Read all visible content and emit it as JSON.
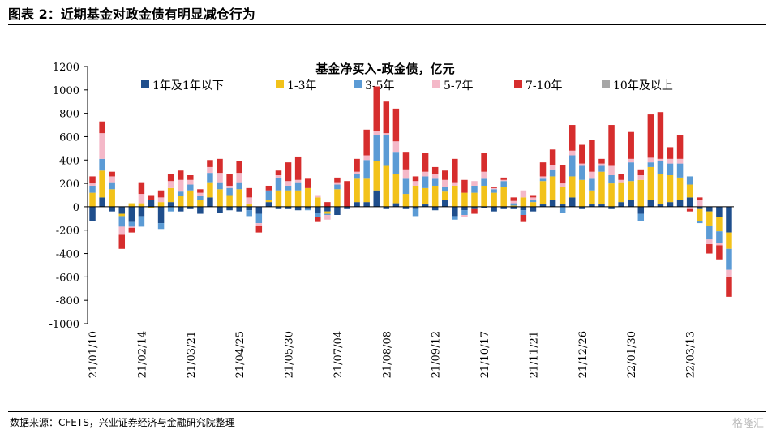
{
  "figure_title": "图表 2：近期基金对政金债有明显减仓行为",
  "source": "数据来源：CFETS，兴业证券经济与金融研究院整理",
  "watermark": "格隆汇",
  "chart_data": {
    "type": "bar",
    "stacked": true,
    "title": "基金净买入-政金债，亿元",
    "xlabel": "",
    "ylabel": "",
    "ylim": [
      -1000,
      1200
    ],
    "yticks": [
      -1000,
      -800,
      -600,
      -400,
      -200,
      0,
      200,
      400,
      600,
      800,
      1000,
      1200
    ],
    "x_tick_labels": [
      "21/01/10",
      "21/02/14",
      "21/03/21",
      "21/04/25",
      "21/05/30",
      "21/07/04",
      "21/08/08",
      "21/09/12",
      "21/10/17",
      "21/11/21",
      "21/12/26",
      "22/01/30",
      "22/03/13"
    ],
    "x_tick_bar_index": [
      0,
      5,
      10,
      15,
      20,
      25,
      30,
      35,
      40,
      45,
      50,
      55,
      61
    ],
    "legend_position": "top",
    "grid": false,
    "series": [
      {
        "name": "1年及1年以下",
        "color": "#1f4e8c",
        "values": [
          -120,
          80,
          -40,
          -60,
          -130,
          -80,
          60,
          -140,
          40,
          -40,
          -20,
          -60,
          80,
          -50,
          -30,
          -40,
          -30,
          -60,
          40,
          -20,
          -20,
          -30,
          -20,
          -50,
          -40,
          -70,
          -20,
          40,
          40,
          140,
          -20,
          30,
          -20,
          -20,
          20,
          -30,
          60,
          -80,
          -30,
          -20,
          -10,
          -40,
          -20,
          -20,
          -30,
          -40,
          20,
          60,
          20,
          80,
          -20,
          20,
          20,
          -20,
          40,
          60,
          -60,
          60,
          20,
          40,
          60,
          80,
          -20,
          -40,
          -90,
          -220
        ]
      },
      {
        "name": "1-3年",
        "color": "#f2c21a",
        "values": [
          120,
          230,
          150,
          -20,
          30,
          30,
          -10,
          40,
          120,
          90,
          140,
          60,
          130,
          150,
          100,
          150,
          20,
          0,
          20,
          140,
          140,
          140,
          160,
          80,
          -20,
          150,
          0,
          200,
          200,
          250,
          350,
          250,
          110,
          180,
          140,
          180,
          70,
          180,
          120,
          120,
          180,
          120,
          170,
          10,
          80,
          40,
          200,
          200,
          150,
          180,
          230,
          120,
          280,
          200,
          170,
          160,
          230,
          280,
          260,
          230,
          190,
          110,
          -100,
          -120,
          -120,
          -140
        ]
      },
      {
        "name": "3-5年",
        "color": "#5b9bd5",
        "values": [
          60,
          100,
          60,
          -90,
          -40,
          -90,
          0,
          -50,
          -40,
          40,
          50,
          30,
          80,
          60,
          60,
          60,
          -50,
          -80,
          80,
          110,
          40,
          70,
          -10,
          -40,
          -10,
          40,
          0,
          40,
          160,
          220,
          260,
          190,
          130,
          -60,
          100,
          60,
          40,
          -30,
          -40,
          60,
          60,
          30,
          50,
          20,
          -40,
          20,
          20,
          60,
          -50,
          180,
          120,
          100,
          50,
          70,
          0,
          160,
          -60,
          40,
          110,
          100,
          120,
          70,
          -20,
          -120,
          -100,
          -180
        ]
      },
      {
        "name": "5-7年",
        "color": "#f4b8c8",
        "values": [
          20,
          220,
          50,
          -70,
          -10,
          80,
          0,
          40,
          60,
          100,
          40,
          30,
          50,
          80,
          20,
          80,
          60,
          -20,
          0,
          20,
          40,
          20,
          0,
          20,
          -40,
          20,
          0,
          20,
          40,
          40,
          20,
          90,
          80,
          40,
          40,
          40,
          60,
          30,
          -20,
          40,
          60,
          10,
          10,
          20,
          60,
          20,
          20,
          40,
          30,
          40,
          20,
          60,
          20,
          80,
          20,
          30,
          40,
          40,
          20,
          40,
          40,
          -20,
          60,
          -40,
          -20,
          -60
        ]
      },
      {
        "name": "7-10年",
        "color": "#d62d2d",
        "values": [
          60,
          100,
          40,
          -120,
          -40,
          100,
          40,
          60,
          60,
          80,
          40,
          30,
          60,
          120,
          100,
          100,
          80,
          -60,
          40,
          40,
          160,
          200,
          80,
          -40,
          40,
          40,
          220,
          110,
          220,
          380,
          270,
          280,
          150,
          40,
          160,
          60,
          80,
          200,
          110,
          -40,
          160,
          10,
          20,
          30,
          -60,
          20,
          120,
          130,
          160,
          220,
          160,
          270,
          40,
          350,
          50,
          230,
          50,
          370,
          400,
          100,
          200,
          -20,
          20,
          -80,
          -120,
          -170
        ]
      },
      {
        "name": "10年及以上",
        "color": "#a6a6a6",
        "values": [
          0,
          0,
          0,
          0,
          0,
          0,
          0,
          0,
          0,
          0,
          0,
          0,
          0,
          0,
          0,
          0,
          0,
          0,
          0,
          0,
          0,
          0,
          0,
          0,
          0,
          0,
          0,
          0,
          0,
          0,
          0,
          0,
          0,
          0,
          0,
          0,
          0,
          0,
          0,
          0,
          0,
          0,
          0,
          0,
          0,
          0,
          0,
          0,
          0,
          0,
          0,
          0,
          0,
          0,
          0,
          0,
          0,
          0,
          0,
          0,
          0,
          0,
          0,
          0,
          0,
          0
        ]
      }
    ]
  }
}
